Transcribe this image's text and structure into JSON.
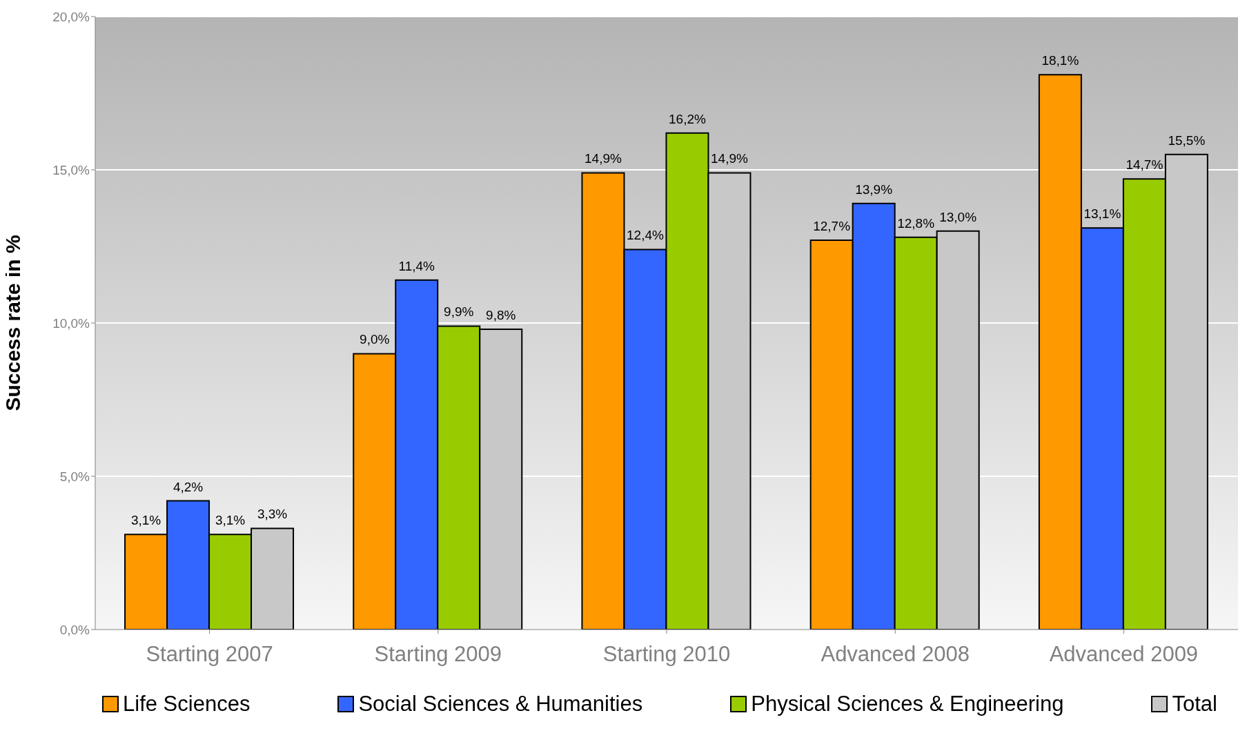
{
  "chart_data": {
    "type": "bar",
    "ylabel": "Success rate in %",
    "categories": [
      "Starting 2007",
      "Starting 2009",
      "Starting 2010",
      "Advanced 2008",
      "Advanced 2009"
    ],
    "series": [
      {
        "name": "Life Sciences",
        "color": "#ff9900",
        "values": [
          3.1,
          9.0,
          14.9,
          12.7,
          18.1
        ],
        "value_labels": [
          "3,1%",
          "9,0%",
          "14,9%",
          "12,7%",
          "18,1%"
        ]
      },
      {
        "name": "Social Sciences & Humanities",
        "color": "#3366ff",
        "values": [
          4.2,
          11.4,
          12.4,
          13.9,
          13.1
        ],
        "value_labels": [
          "4,2%",
          "11,4%",
          "12,4%",
          "13,9%",
          "13,1%"
        ]
      },
      {
        "name": "Physical Sciences & Engineering",
        "color": "#99cc00",
        "values": [
          3.1,
          9.9,
          16.2,
          12.8,
          14.7
        ],
        "value_labels": [
          "3,1%",
          "9,9%",
          "16,2%",
          "12,8%",
          "14,7%"
        ]
      },
      {
        "name": "Total",
        "color": "#c8c8c8",
        "values": [
          3.3,
          9.8,
          14.9,
          13.0,
          15.5
        ],
        "value_labels": [
          "3,3%",
          "9,8%",
          "14,9%",
          "13,0%",
          "15,5%"
        ]
      }
    ],
    "ylim": [
      0,
      20
    ],
    "yticks": [
      {
        "value": 0,
        "label": "0,0%"
      },
      {
        "value": 5,
        "label": "5,0%"
      },
      {
        "value": 10,
        "label": "10,0%"
      },
      {
        "value": 15,
        "label": "15,0%"
      },
      {
        "value": 20,
        "label": "20,0%"
      }
    ],
    "grid": "y",
    "legend": "bottom"
  }
}
